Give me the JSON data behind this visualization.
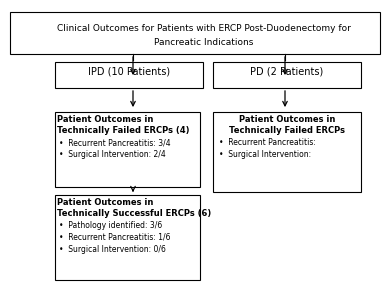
{
  "title_line1": "Clinical Outcomes for Patients with ERCP Post-Duodenectomy for",
  "title_line2": "Pancreatic Indications",
  "box_ipd": "IPD (10 Patients)",
  "box_pd": "PD (2 Patients)",
  "box_ipd_failed_title1": "Patient Outcomes in",
  "box_ipd_failed_title2": "Technically Failed ERCPs (4)",
  "box_ipd_failed_bullets": [
    "Recurrent Pancreatitis: 3/4",
    "Surgical Intervention: 2/4"
  ],
  "box_ipd_success_title1": "Patient Outcomes in",
  "box_ipd_success_title2": "Technically Successful ERCPs (6)",
  "box_ipd_success_bullets": [
    "Pathology identified: 3/6",
    "Recurrent Pancreatitis: 1/6",
    "Surgical Intervention: 0/6"
  ],
  "box_pd_failed_title1": "Patient Outcomes in",
  "box_pd_failed_title2": "Technically Failed ERCPs",
  "box_pd_failed_bullets": [
    "Recurrent Pancreatitis:",
    "Surgical Intervention:"
  ],
  "bg_color": "#ffffff",
  "box_edge_color": "#000000",
  "text_color": "#000000",
  "arrow_color": "#000000"
}
